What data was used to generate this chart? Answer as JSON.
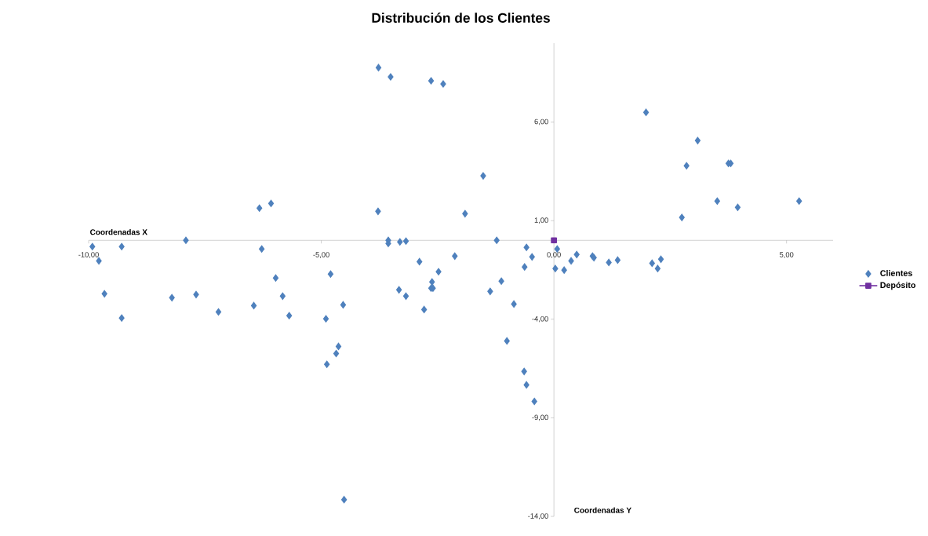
{
  "chart_data": {
    "type": "scatter",
    "title": "Distribución de los Clientes",
    "xlabel": "Coordenadas X",
    "ylabel": "Coordenadas Y",
    "xlim": [
      -10,
      6
    ],
    "ylim": [
      -14,
      10
    ],
    "xticks": [
      {
        "value": -10,
        "label": "-10,00"
      },
      {
        "value": -5,
        "label": "-5,00"
      },
      {
        "value": 0,
        "label": "0,00"
      },
      {
        "value": 5,
        "label": "5,00"
      }
    ],
    "yticks": [
      {
        "value": -14,
        "label": "-14,00"
      },
      {
        "value": -9,
        "label": "-9,00"
      },
      {
        "value": -4,
        "label": "-4,00"
      },
      {
        "value": 1,
        "label": "1,00"
      },
      {
        "value": 6,
        "label": "6,00"
      }
    ],
    "legend": "right",
    "series": [
      {
        "name": "Clientes",
        "marker": "diamond",
        "color": "#4f81bd",
        "x": [
          -3.77,
          -3.51,
          -2.64,
          -2.38,
          1.98,
          3.09,
          2.85,
          3.75,
          3.8,
          -1.52,
          3.51,
          3.95,
          5.27,
          2.75,
          -6.33,
          -6.08,
          -3.78,
          -1.91,
          -9.92,
          -9.78,
          -9.29,
          -7.91,
          -9.66,
          -9.29,
          -8.21,
          -7.69,
          -7.21,
          -6.28,
          -6.45,
          -5.98,
          -5.83,
          -5.69,
          -4.8,
          -4.9,
          -4.53,
          -4.63,
          -4.68,
          -4.88,
          -4.51,
          -3.56,
          -3.56,
          -3.31,
          -3.18,
          -2.89,
          -3.33,
          -3.18,
          -2.79,
          -2.62,
          -2.64,
          -2.6,
          -2.48,
          -2.13,
          -1.23,
          -1.37,
          -1.13,
          -0.86,
          -1.01,
          -0.64,
          -0.59,
          -0.42,
          -0.63,
          -0.59,
          -0.47,
          0.07,
          0.03,
          0.22,
          0.37,
          0.49,
          0.83,
          0.86,
          1.18,
          1.37,
          2.11,
          2.23,
          2.3
        ],
        "values": [
          8.76,
          8.29,
          8.09,
          7.93,
          6.49,
          5.06,
          3.78,
          3.9,
          3.9,
          3.27,
          1.99,
          1.67,
          1.99,
          1.16,
          1.63,
          1.87,
          1.47,
          1.35,
          -0.32,
          -1.04,
          -0.32,
          0,
          -2.71,
          -3.94,
          -2.91,
          -2.75,
          -3.63,
          -0.44,
          -3.31,
          -1.91,
          -2.83,
          -3.82,
          -1.71,
          -3.98,
          -3.27,
          -5.38,
          -5.74,
          -6.29,
          -13.15,
          0,
          -0.16,
          -0.08,
          -0.04,
          -1.08,
          -2.51,
          -2.83,
          -3.51,
          -2.11,
          -2.43,
          -2.43,
          -1.59,
          -0.8,
          0,
          -2.59,
          -2.07,
          -3.23,
          -5.1,
          -6.65,
          -7.33,
          -8.17,
          -1.35,
          -0.36,
          -0.84,
          -0.44,
          -1.43,
          -1.51,
          -1.04,
          -0.72,
          -0.8,
          -0.88,
          -1.12,
          -1.0,
          -1.16,
          -1.43,
          -0.96
        ]
      },
      {
        "name": "Depósito",
        "type": "line",
        "marker": "square",
        "color": "#7030a0",
        "x": [
          0
        ],
        "values": [
          0
        ]
      }
    ]
  }
}
